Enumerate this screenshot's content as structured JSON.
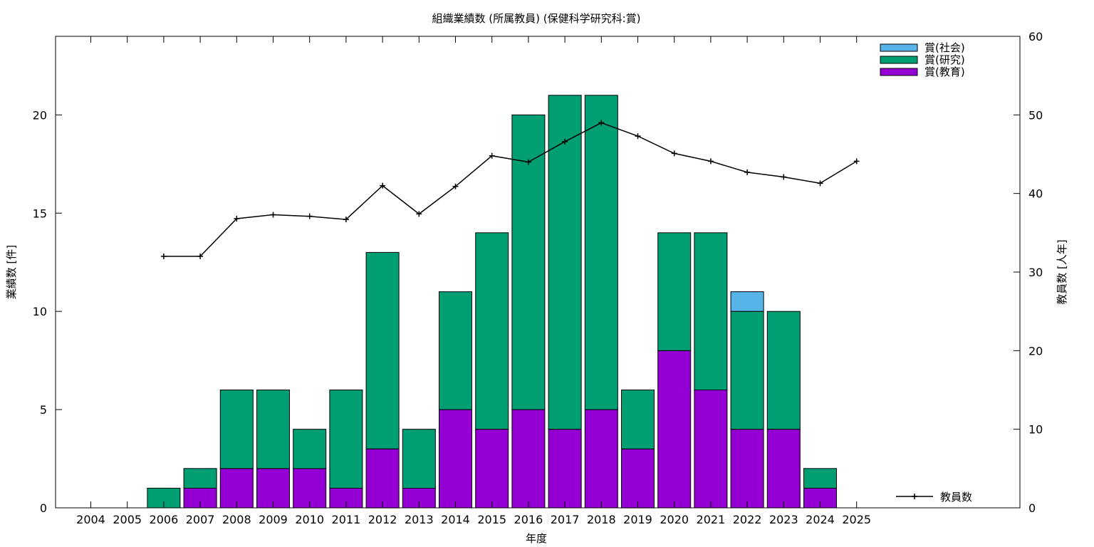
{
  "chart_data": {
    "type": "bar",
    "title": "組織業績数 (所属教員) (保健科学研究科:賞)",
    "xlabel": "年度",
    "ylabel": "業績数 [件]",
    "y2label": "教員数 [人年]",
    "categories": [
      "2004",
      "2005",
      "2006",
      "2007",
      "2008",
      "2009",
      "2010",
      "2011",
      "2012",
      "2013",
      "2014",
      "2015",
      "2016",
      "2017",
      "2018",
      "2019",
      "2020",
      "2021",
      "2022",
      "2023",
      "2024",
      "2025"
    ],
    "ylim": [
      0,
      24
    ],
    "yticks": [
      0,
      5,
      10,
      15,
      20
    ],
    "y2lim": [
      0,
      60
    ],
    "y2ticks": [
      0,
      10,
      20,
      30,
      40,
      50,
      60
    ],
    "stacked": true,
    "series": [
      {
        "name": "賞(教育)",
        "color": "#9400d3",
        "values": [
          0,
          0,
          0,
          1,
          2,
          2,
          2,
          1,
          3,
          1,
          5,
          4,
          5,
          4,
          5,
          3,
          8,
          6,
          4,
          4,
          1,
          0
        ]
      },
      {
        "name": "賞(研究)",
        "color": "#009e73",
        "values": [
          0,
          0,
          1,
          1,
          4,
          4,
          2,
          5,
          10,
          3,
          6,
          10,
          15,
          17,
          16,
          3,
          6,
          8,
          6,
          6,
          1,
          0
        ]
      },
      {
        "name": "賞(社会)",
        "color": "#56b4e9",
        "values": [
          0,
          0,
          0,
          0,
          0,
          0,
          0,
          0,
          0,
          0,
          0,
          0,
          0,
          0,
          0,
          0,
          0,
          0,
          1,
          0,
          0,
          0
        ]
      }
    ],
    "line_series": {
      "name": "教員数",
      "axis": "y2",
      "color": "#000000",
      "x": [
        "2006",
        "2007",
        "2008",
        "2009",
        "2010",
        "2011",
        "2012",
        "2013",
        "2014",
        "2015",
        "2016",
        "2017",
        "2018",
        "2019",
        "2020",
        "2021",
        "2022",
        "2023",
        "2024",
        "2025"
      ],
      "values": [
        32.0,
        32.0,
        36.8,
        37.3,
        37.1,
        36.7,
        41.0,
        37.4,
        40.9,
        44.8,
        44.0,
        46.6,
        49.0,
        47.3,
        45.1,
        44.1,
        42.7,
        42.1,
        41.3,
        44.1
      ]
    },
    "legend_position": "top-right",
    "line_legend_position": "bottom-right",
    "grid": false
  }
}
